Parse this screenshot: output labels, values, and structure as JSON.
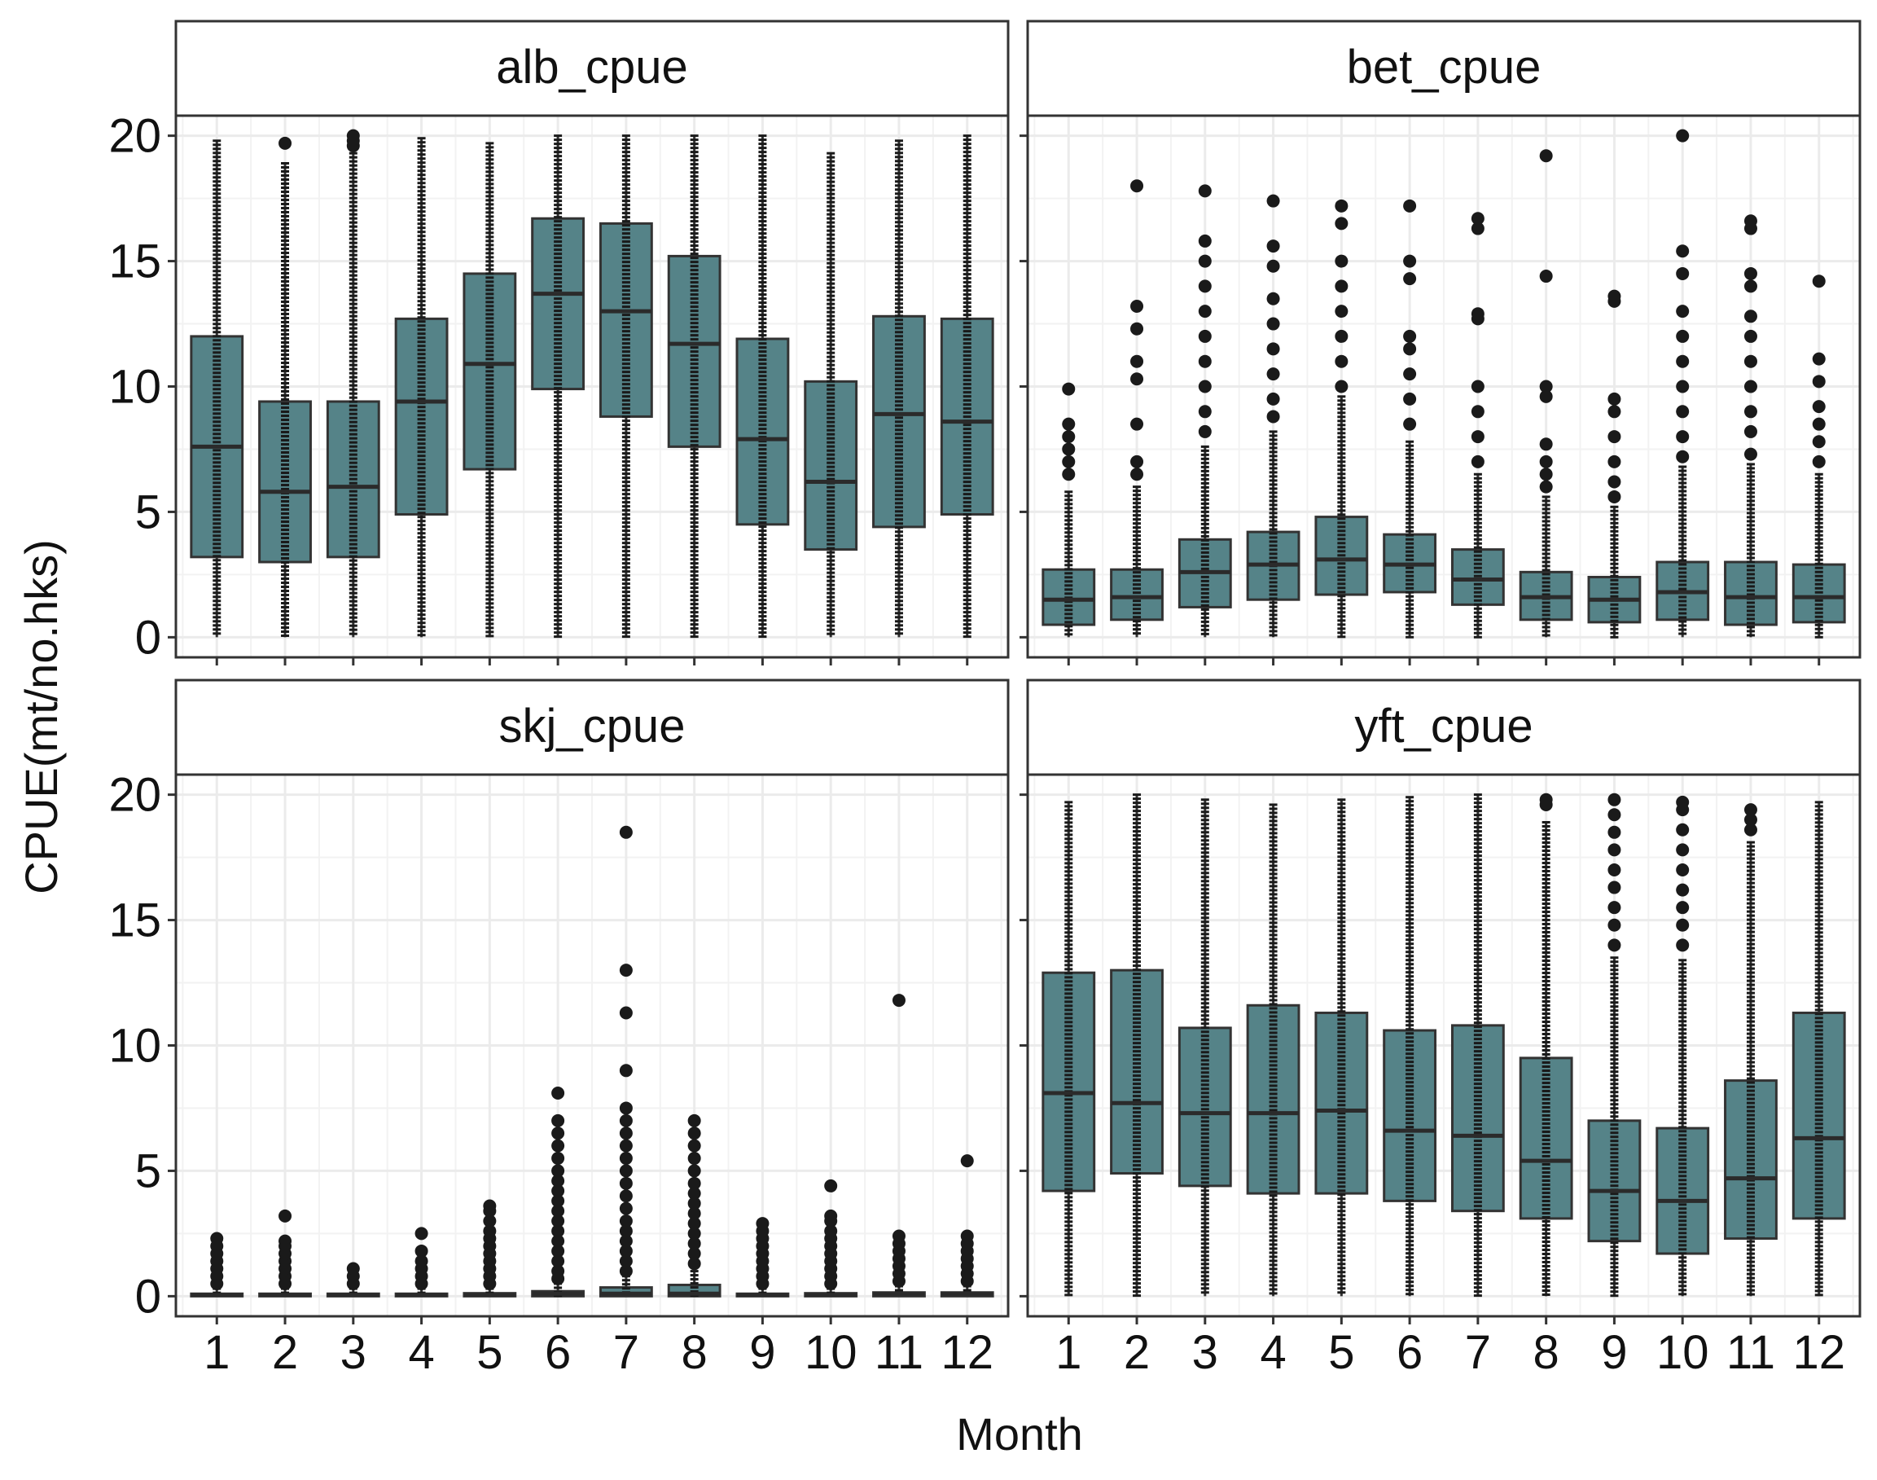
{
  "chart_data": {
    "type": "boxplot",
    "facet_layout": "2x2 grid",
    "xlabel": "Month",
    "ylabel": "CPUE(mt/no.hks)",
    "ylim": [
      -0.8,
      20.8
    ],
    "yticks": [
      0,
      5,
      10,
      15,
      20
    ],
    "categories": [
      "1",
      "2",
      "3",
      "4",
      "5",
      "6",
      "7",
      "8",
      "9",
      "10",
      "11",
      "12"
    ],
    "box_fill": "#558388",
    "box_stroke": "#333333",
    "outlier_color": "#1a1a1a",
    "grid_color": "#ebebeb",
    "panel_border_color": "#333333",
    "strip_fill": "#ffffff",
    "panels": [
      {
        "title": "alb_cpue",
        "boxes": [
          {
            "month": "1",
            "q1": 3.2,
            "median": 7.6,
            "q3": 12.0,
            "wlo": 0,
            "whi": 19.8,
            "out": []
          },
          {
            "month": "2",
            "q1": 3.0,
            "median": 5.8,
            "q3": 9.4,
            "wlo": 0,
            "whi": 18.9,
            "out": [
              19.7
            ]
          },
          {
            "month": "3",
            "q1": 3.2,
            "median": 6.0,
            "q3": 9.4,
            "wlo": 0,
            "whi": 19.3,
            "out": [
              19.6,
              19.8,
              20.0
            ]
          },
          {
            "month": "4",
            "q1": 4.9,
            "median": 9.4,
            "q3": 12.7,
            "wlo": 0,
            "whi": 19.9,
            "out": []
          },
          {
            "month": "5",
            "q1": 6.7,
            "median": 10.9,
            "q3": 14.5,
            "wlo": 0,
            "whi": 19.7,
            "out": []
          },
          {
            "month": "6",
            "q1": 9.9,
            "median": 13.7,
            "q3": 16.7,
            "wlo": 0,
            "whi": 20.0,
            "out": []
          },
          {
            "month": "7",
            "q1": 8.8,
            "median": 13.0,
            "q3": 16.5,
            "wlo": 0,
            "whi": 20.0,
            "out": []
          },
          {
            "month": "8",
            "q1": 7.6,
            "median": 11.7,
            "q3": 15.2,
            "wlo": 0,
            "whi": 20.0,
            "out": []
          },
          {
            "month": "9",
            "q1": 4.5,
            "median": 7.9,
            "q3": 11.9,
            "wlo": 0,
            "whi": 20.0,
            "out": []
          },
          {
            "month": "10",
            "q1": 3.5,
            "median": 6.2,
            "q3": 10.2,
            "wlo": 0,
            "whi": 19.3,
            "out": []
          },
          {
            "month": "11",
            "q1": 4.4,
            "median": 8.9,
            "q3": 12.8,
            "wlo": 0,
            "whi": 19.8,
            "out": []
          },
          {
            "month": "12",
            "q1": 4.9,
            "median": 8.6,
            "q3": 12.7,
            "wlo": 0,
            "whi": 20.0,
            "out": []
          }
        ]
      },
      {
        "title": "bet_cpue",
        "boxes": [
          {
            "month": "1",
            "q1": 0.5,
            "median": 1.5,
            "q3": 2.7,
            "wlo": 0,
            "whi": 5.8,
            "out": [
              6.5,
              7.0,
              7.5,
              8.0,
              8.5,
              9.9
            ]
          },
          {
            "month": "2",
            "q1": 0.7,
            "median": 1.6,
            "q3": 2.7,
            "wlo": 0,
            "whi": 6.0,
            "out": [
              6.5,
              7.0,
              8.5,
              10.3,
              11.0,
              12.3,
              13.2,
              18.0
            ]
          },
          {
            "month": "3",
            "q1": 1.2,
            "median": 2.6,
            "q3": 3.9,
            "wlo": 0,
            "whi": 7.6,
            "out": [
              8.2,
              9.0,
              10.0,
              11.0,
              12.0,
              13.0,
              14.0,
              15.0,
              15.8,
              17.8
            ]
          },
          {
            "month": "4",
            "q1": 1.5,
            "median": 2.9,
            "q3": 4.2,
            "wlo": 0,
            "whi": 8.2,
            "out": [
              8.8,
              9.5,
              10.5,
              11.5,
              12.5,
              13.5,
              14.8,
              15.6,
              17.4
            ]
          },
          {
            "month": "5",
            "q1": 1.7,
            "median": 3.1,
            "q3": 4.8,
            "wlo": 0,
            "whi": 9.6,
            "out": [
              10.0,
              11.0,
              12.0,
              13.0,
              14.0,
              15.0,
              16.5,
              17.2
            ]
          },
          {
            "month": "6",
            "q1": 1.8,
            "median": 2.9,
            "q3": 4.1,
            "wlo": 0,
            "whi": 7.8,
            "out": [
              8.5,
              9.5,
              10.5,
              11.5,
              12.0,
              14.3,
              15.0,
              17.2
            ]
          },
          {
            "month": "7",
            "q1": 1.3,
            "median": 2.3,
            "q3": 3.5,
            "wlo": 0,
            "whi": 6.5,
            "out": [
              7.0,
              8.0,
              9.0,
              10.0,
              12.7,
              12.9,
              16.3,
              16.7
            ]
          },
          {
            "month": "8",
            "q1": 0.7,
            "median": 1.6,
            "q3": 2.6,
            "wlo": 0,
            "whi": 5.6,
            "out": [
              6.0,
              6.5,
              7.0,
              7.7,
              9.6,
              10.0,
              14.4,
              19.2
            ]
          },
          {
            "month": "9",
            "q1": 0.6,
            "median": 1.5,
            "q3": 2.4,
            "wlo": 0,
            "whi": 5.2,
            "out": [
              5.6,
              6.2,
              7.0,
              8.0,
              9.0,
              9.5,
              13.4,
              13.6
            ]
          },
          {
            "month": "10",
            "q1": 0.7,
            "median": 1.8,
            "q3": 3.0,
            "wlo": 0,
            "whi": 6.8,
            "out": [
              7.2,
              8.0,
              9.0,
              10.0,
              11.0,
              12.0,
              13.0,
              14.5,
              15.4,
              20.0
            ]
          },
          {
            "month": "11",
            "q1": 0.5,
            "median": 1.6,
            "q3": 3.0,
            "wlo": 0,
            "whi": 6.9,
            "out": [
              7.3,
              8.2,
              9.0,
              10.0,
              11.0,
              12.0,
              12.8,
              14.0,
              14.5,
              16.3,
              16.6
            ]
          },
          {
            "month": "12",
            "q1": 0.6,
            "median": 1.6,
            "q3": 2.9,
            "wlo": 0,
            "whi": 6.5,
            "out": [
              7.0,
              7.8,
              8.5,
              9.2,
              10.2,
              11.1,
              14.2
            ]
          }
        ]
      },
      {
        "title": "skj_cpue",
        "boxes": [
          {
            "month": "1",
            "q1": 0,
            "median": 0.05,
            "q3": 0.1,
            "wlo": 0,
            "whi": 0.3,
            "out": [
              0.5,
              0.8,
              1.1,
              1.4,
              1.7,
              2.0,
              2.3
            ]
          },
          {
            "month": "2",
            "q1": 0,
            "median": 0.05,
            "q3": 0.1,
            "wlo": 0,
            "whi": 0.3,
            "out": [
              0.5,
              0.8,
              1.1,
              1.4,
              1.7,
              2.0,
              2.2,
              3.2
            ]
          },
          {
            "month": "3",
            "q1": 0,
            "median": 0.05,
            "q3": 0.1,
            "wlo": 0,
            "whi": 0.3,
            "out": [
              0.5,
              0.8,
              1.1
            ]
          },
          {
            "month": "4",
            "q1": 0,
            "median": 0.05,
            "q3": 0.1,
            "wlo": 0,
            "whi": 0.3,
            "out": [
              0.5,
              0.8,
              1.1,
              1.4,
              1.8,
              2.5
            ]
          },
          {
            "month": "5",
            "q1": 0,
            "median": 0.05,
            "q3": 0.12,
            "wlo": 0,
            "whi": 0.3,
            "out": [
              0.5,
              0.8,
              1.1,
              1.4,
              1.7,
              2.0,
              2.3,
              2.6,
              3.0,
              3.4,
              3.6
            ]
          },
          {
            "month": "6",
            "q1": 0,
            "median": 0.1,
            "q3": 0.2,
            "wlo": 0,
            "whi": 0.5,
            "out": [
              0.7,
              1.0,
              1.4,
              1.8,
              2.2,
              2.6,
              3.0,
              3.4,
              3.8,
              4.2,
              4.6,
              5.0,
              5.5,
              6.0,
              6.5,
              7.0,
              8.1
            ]
          },
          {
            "month": "7",
            "q1": 0,
            "median": 0.1,
            "q3": 0.35,
            "wlo": 0,
            "whi": 0.8,
            "out": [
              1.0,
              1.4,
              1.8,
              2.2,
              2.6,
              3.0,
              3.5,
              4.0,
              4.5,
              5.0,
              5.5,
              6.0,
              6.5,
              7.0,
              7.5,
              9.0,
              11.3,
              13.0,
              18.5
            ]
          },
          {
            "month": "8",
            "q1": 0,
            "median": 0.1,
            "q3": 0.45,
            "wlo": 0,
            "whi": 1.0,
            "out": [
              1.3,
              1.7,
              2.1,
              2.5,
              2.9,
              3.3,
              3.7,
              4.1,
              4.5,
              5.0,
              5.5,
              6.0,
              6.5,
              7.0
            ]
          },
          {
            "month": "9",
            "q1": 0,
            "median": 0.05,
            "q3": 0.1,
            "wlo": 0,
            "whi": 0.3,
            "out": [
              0.5,
              0.8,
              1.1,
              1.4,
              1.7,
              2.0,
              2.3,
              2.6,
              2.9
            ]
          },
          {
            "month": "10",
            "q1": 0,
            "median": 0.05,
            "q3": 0.12,
            "wlo": 0,
            "whi": 0.3,
            "out": [
              0.5,
              0.8,
              1.1,
              1.4,
              1.7,
              2.0,
              2.3,
              2.6,
              3.0,
              3.2,
              4.4
            ]
          },
          {
            "month": "11",
            "q1": 0,
            "median": 0.1,
            "q3": 0.15,
            "wlo": 0,
            "whi": 0.4,
            "out": [
              0.6,
              0.9,
              1.2,
              1.5,
              1.8,
              2.1,
              2.4,
              11.8
            ]
          },
          {
            "month": "12",
            "q1": 0,
            "median": 0.1,
            "q3": 0.15,
            "wlo": 0,
            "whi": 0.4,
            "out": [
              0.6,
              0.9,
              1.2,
              1.5,
              1.8,
              2.1,
              2.4,
              5.4
            ]
          }
        ]
      },
      {
        "title": "yft_cpue",
        "boxes": [
          {
            "month": "1",
            "q1": 4.2,
            "median": 8.1,
            "q3": 12.9,
            "wlo": 0,
            "whi": 19.7,
            "out": []
          },
          {
            "month": "2",
            "q1": 4.9,
            "median": 7.7,
            "q3": 13.0,
            "wlo": 0,
            "whi": 20.0,
            "out": []
          },
          {
            "month": "3",
            "q1": 4.4,
            "median": 7.3,
            "q3": 10.7,
            "wlo": 0,
            "whi": 19.8,
            "out": []
          },
          {
            "month": "4",
            "q1": 4.1,
            "median": 7.3,
            "q3": 11.6,
            "wlo": 0,
            "whi": 19.6,
            "out": []
          },
          {
            "month": "5",
            "q1": 4.1,
            "median": 7.4,
            "q3": 11.3,
            "wlo": 0,
            "whi": 19.8,
            "out": []
          },
          {
            "month": "6",
            "q1": 3.8,
            "median": 6.6,
            "q3": 10.6,
            "wlo": 0,
            "whi": 19.9,
            "out": []
          },
          {
            "month": "7",
            "q1": 3.4,
            "median": 6.4,
            "q3": 10.8,
            "wlo": 0,
            "whi": 20.0,
            "out": []
          },
          {
            "month": "8",
            "q1": 3.1,
            "median": 5.4,
            "q3": 9.5,
            "wlo": 0,
            "whi": 18.9,
            "out": [
              19.6,
              19.8
            ]
          },
          {
            "month": "9",
            "q1": 2.2,
            "median": 4.2,
            "q3": 7.0,
            "wlo": 0,
            "whi": 13.5,
            "out": [
              14.0,
              14.8,
              15.5,
              16.3,
              17.0,
              17.8,
              18.5,
              19.2,
              19.8
            ]
          },
          {
            "month": "10",
            "q1": 1.7,
            "median": 3.8,
            "q3": 6.7,
            "wlo": 0,
            "whi": 13.4,
            "out": [
              14.0,
              14.8,
              15.5,
              16.2,
              17.0,
              17.8,
              18.6,
              19.4,
              19.7
            ]
          },
          {
            "month": "11",
            "q1": 2.3,
            "median": 4.7,
            "q3": 8.6,
            "wlo": 0,
            "whi": 18.1,
            "out": [
              18.6,
              19.0,
              19.4
            ]
          },
          {
            "month": "12",
            "q1": 3.1,
            "median": 6.3,
            "q3": 11.3,
            "wlo": 0,
            "whi": 19.7,
            "out": []
          }
        ]
      }
    ]
  }
}
